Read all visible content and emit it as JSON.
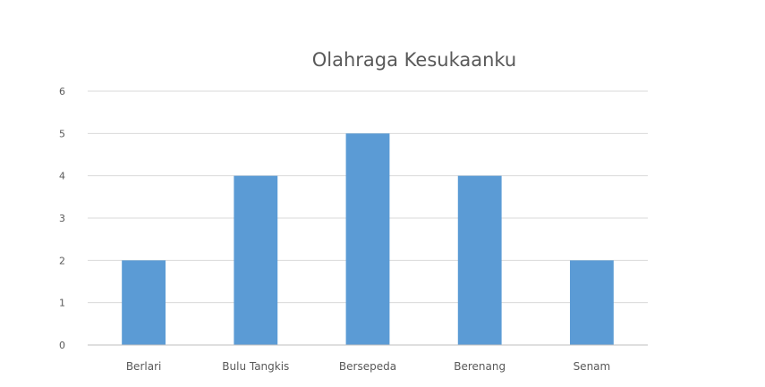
{
  "chart_data": {
    "type": "bar",
    "title": "Olahraga Kesukaanku",
    "categories": [
      "Berlari",
      "Bulu Tangkis",
      "Bersepeda",
      "Berenang",
      "Senam"
    ],
    "values": [
      2,
      4,
      5,
      4,
      2
    ],
    "ylim": [
      0,
      6
    ],
    "yticks": [
      0,
      1,
      2,
      3,
      4,
      5,
      6
    ],
    "grid": true,
    "legend": "none",
    "colors": {
      "bar": "#5b9bd5",
      "grid": "#d9d9d9",
      "axis": "#bfbfbf",
      "text": "#595959"
    }
  }
}
